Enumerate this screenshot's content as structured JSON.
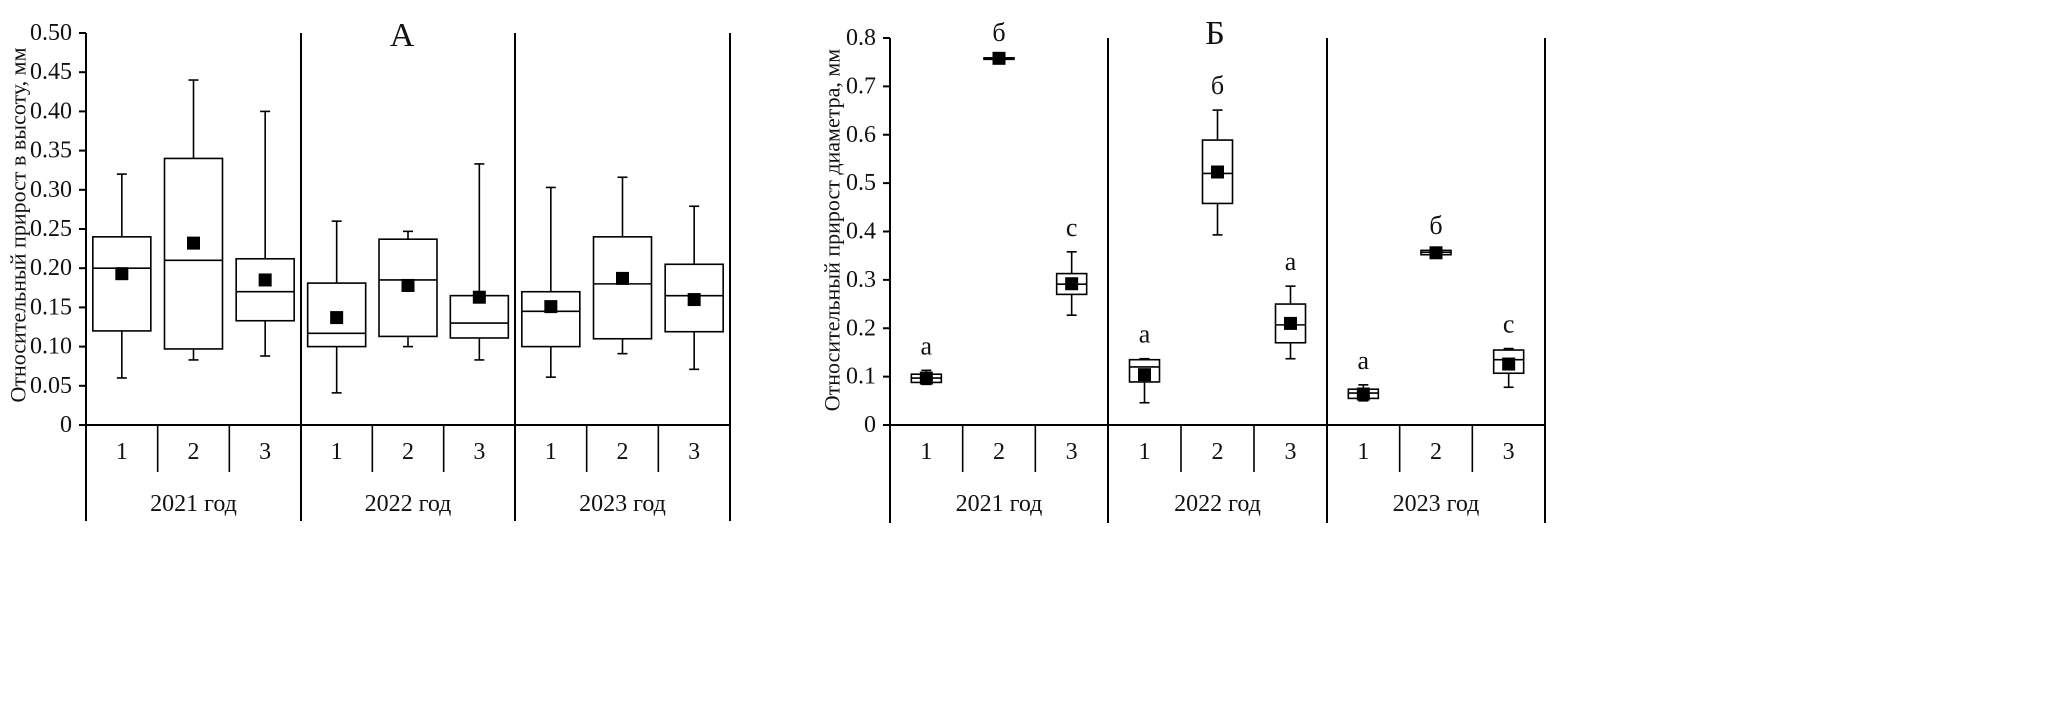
{
  "chart_data": [
    {
      "type": "box",
      "title": "А",
      "ylabel": "Относительный прирост в высоту, мм",
      "ylim": [
        0,
        0.5
      ],
      "yticks": [
        "0",
        "0.05",
        "0.10",
        "0.15",
        "0.20",
        "0.25",
        "0.30",
        "0.35",
        "0.40",
        "0.45",
        "0.50"
      ],
      "groups": [
        {
          "label": "2021 год",
          "categories": [
            "1",
            "2",
            "3"
          ]
        },
        {
          "label": "2022 год",
          "categories": [
            "1",
            "2",
            "3"
          ]
        },
        {
          "label": "2023 год",
          "categories": [
            "1",
            "2",
            "3"
          ]
        }
      ],
      "boxes": [
        {
          "group": 0,
          "cat": "1",
          "min": 0.06,
          "q1": 0.12,
          "median": 0.2,
          "q3": 0.24,
          "max": 0.32,
          "mean": 0.193,
          "sig": ""
        },
        {
          "group": 0,
          "cat": "2",
          "min": 0.083,
          "q1": 0.097,
          "median": 0.21,
          "q3": 0.34,
          "max": 0.44,
          "mean": 0.232,
          "sig": ""
        },
        {
          "group": 0,
          "cat": "3",
          "min": 0.088,
          "q1": 0.133,
          "median": 0.17,
          "q3": 0.212,
          "max": 0.4,
          "mean": 0.185,
          "sig": ""
        },
        {
          "group": 1,
          "cat": "1",
          "min": 0.041,
          "q1": 0.1,
          "median": 0.117,
          "q3": 0.181,
          "max": 0.26,
          "mean": 0.137,
          "sig": ""
        },
        {
          "group": 1,
          "cat": "2",
          "min": 0.1,
          "q1": 0.113,
          "median": 0.185,
          "q3": 0.237,
          "max": 0.247,
          "mean": 0.178,
          "sig": ""
        },
        {
          "group": 1,
          "cat": "3",
          "min": 0.083,
          "q1": 0.111,
          "median": 0.13,
          "q3": 0.165,
          "max": 0.333,
          "mean": 0.163,
          "sig": ""
        },
        {
          "group": 2,
          "cat": "1",
          "min": 0.061,
          "q1": 0.1,
          "median": 0.145,
          "q3": 0.17,
          "max": 0.303,
          "mean": 0.151,
          "sig": ""
        },
        {
          "group": 2,
          "cat": "2",
          "min": 0.091,
          "q1": 0.11,
          "median": 0.18,
          "q3": 0.24,
          "max": 0.316,
          "mean": 0.187,
          "sig": ""
        },
        {
          "group": 2,
          "cat": "3",
          "min": 0.071,
          "q1": 0.119,
          "median": 0.165,
          "q3": 0.205,
          "max": 0.279,
          "mean": 0.16,
          "sig": ""
        }
      ]
    },
    {
      "type": "box",
      "title": "Б",
      "ylabel": "Относительный прирост диаметра, мм",
      "ylim": [
        0,
        0.8
      ],
      "yticks": [
        "0",
        "0.1",
        "0.2",
        "0.3",
        "0.4",
        "0.5",
        "0.6",
        "0.7",
        "0.8"
      ],
      "groups": [
        {
          "label": "2021 год",
          "categories": [
            "1",
            "2",
            "3"
          ]
        },
        {
          "label": "2022 год",
          "categories": [
            "1",
            "2",
            "3"
          ]
        },
        {
          "label": "2023 год",
          "categories": [
            "1",
            "2",
            "3"
          ]
        }
      ],
      "boxes": [
        {
          "group": 0,
          "cat": "1",
          "min": 0.084,
          "q1": 0.088,
          "median": 0.097,
          "q3": 0.105,
          "max": 0.113,
          "mean": 0.097,
          "sig": "а"
        },
        {
          "group": 0,
          "cat": "2",
          "min": 0.756,
          "q1": 0.757,
          "median": 0.758,
          "q3": 0.759,
          "max": 0.761,
          "mean": 0.758,
          "sig": "б"
        },
        {
          "group": 0,
          "cat": "3",
          "min": 0.227,
          "q1": 0.27,
          "median": 0.291,
          "q3": 0.313,
          "max": 0.358,
          "mean": 0.292,
          "sig": "с"
        },
        {
          "group": 1,
          "cat": "1",
          "min": 0.046,
          "q1": 0.089,
          "median": 0.12,
          "q3": 0.135,
          "max": 0.137,
          "mean": 0.104,
          "sig": "а"
        },
        {
          "group": 1,
          "cat": "2",
          "min": 0.393,
          "q1": 0.458,
          "median": 0.52,
          "q3": 0.589,
          "max": 0.651,
          "mean": 0.523,
          "sig": "б"
        },
        {
          "group": 1,
          "cat": "3",
          "min": 0.137,
          "q1": 0.17,
          "median": 0.207,
          "q3": 0.25,
          "max": 0.287,
          "mean": 0.21,
          "sig": "а"
        },
        {
          "group": 2,
          "cat": "1",
          "min": 0.05,
          "q1": 0.055,
          "median": 0.066,
          "q3": 0.074,
          "max": 0.083,
          "mean": 0.064,
          "sig": "а"
        },
        {
          "group": 2,
          "cat": "2",
          "min": 0.351,
          "q1": 0.352,
          "median": 0.357,
          "q3": 0.361,
          "max": 0.362,
          "mean": 0.356,
          "sig": "б"
        },
        {
          "group": 2,
          "cat": "3",
          "min": 0.078,
          "q1": 0.107,
          "median": 0.135,
          "q3": 0.155,
          "max": 0.158,
          "mean": 0.126,
          "sig": "с"
        }
      ]
    }
  ]
}
